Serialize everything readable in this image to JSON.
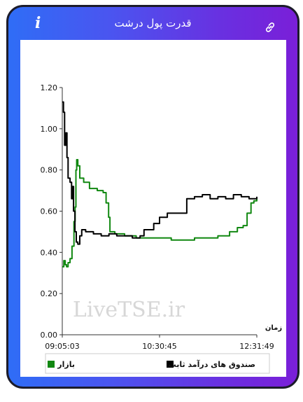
{
  "header": {
    "title": "قدرت پول درشت",
    "info_icon": "info-icon",
    "link_icon": "link-icon"
  },
  "watermark": "LiveTSE.ir",
  "chart_data": {
    "type": "line",
    "xlabel": "زمان",
    "ylabel": "",
    "x_ticks": [
      "09:05:03",
      "10:30:45",
      "12:31:49"
    ],
    "ylim": [
      0,
      1.2
    ],
    "y_ticks": [
      "0.00",
      "0.20",
      "0.40",
      "0.60",
      "0.80",
      "1.00",
      "1.20"
    ],
    "grid": false,
    "legend_position": "bottom",
    "series": [
      {
        "name": "بازار",
        "color": "#118811",
        "points": [
          [
            0.0,
            0.33
          ],
          [
            0.008,
            0.36
          ],
          [
            0.015,
            0.34
          ],
          [
            0.022,
            0.33
          ],
          [
            0.03,
            0.35
          ],
          [
            0.04,
            0.37
          ],
          [
            0.05,
            0.43
          ],
          [
            0.06,
            0.55
          ],
          [
            0.066,
            0.62
          ],
          [
            0.07,
            0.8
          ],
          [
            0.074,
            0.85
          ],
          [
            0.08,
            0.82
          ],
          [
            0.09,
            0.76
          ],
          [
            0.11,
            0.74
          ],
          [
            0.14,
            0.71
          ],
          [
            0.18,
            0.7
          ],
          [
            0.21,
            0.69
          ],
          [
            0.225,
            0.64
          ],
          [
            0.238,
            0.57
          ],
          [
            0.245,
            0.5
          ],
          [
            0.27,
            0.49
          ],
          [
            0.32,
            0.48
          ],
          [
            0.38,
            0.47
          ],
          [
            0.44,
            0.47
          ],
          [
            0.5,
            0.47
          ],
          [
            0.56,
            0.46
          ],
          [
            0.62,
            0.46
          ],
          [
            0.68,
            0.47
          ],
          [
            0.74,
            0.47
          ],
          [
            0.8,
            0.48
          ],
          [
            0.86,
            0.5
          ],
          [
            0.9,
            0.52
          ],
          [
            0.93,
            0.53
          ],
          [
            0.95,
            0.59
          ],
          [
            0.97,
            0.64
          ],
          [
            0.985,
            0.65
          ],
          [
            1.0,
            0.66
          ]
        ]
      },
      {
        "name": "صندوق های درآمد ثابت",
        "color": "#000000",
        "points": [
          [
            0.0,
            1.13
          ],
          [
            0.006,
            1.08
          ],
          [
            0.012,
            0.92
          ],
          [
            0.018,
            0.98
          ],
          [
            0.024,
            0.86
          ],
          [
            0.03,
            0.76
          ],
          [
            0.04,
            0.74
          ],
          [
            0.048,
            0.66
          ],
          [
            0.052,
            0.72
          ],
          [
            0.058,
            0.6
          ],
          [
            0.065,
            0.5
          ],
          [
            0.072,
            0.45
          ],
          [
            0.08,
            0.44
          ],
          [
            0.09,
            0.48
          ],
          [
            0.1,
            0.51
          ],
          [
            0.12,
            0.5
          ],
          [
            0.16,
            0.49
          ],
          [
            0.2,
            0.48
          ],
          [
            0.24,
            0.49
          ],
          [
            0.28,
            0.48
          ],
          [
            0.32,
            0.48
          ],
          [
            0.36,
            0.47
          ],
          [
            0.4,
            0.48
          ],
          [
            0.42,
            0.51
          ],
          [
            0.44,
            0.51
          ],
          [
            0.47,
            0.54
          ],
          [
            0.5,
            0.57
          ],
          [
            0.54,
            0.59
          ],
          [
            0.58,
            0.59
          ],
          [
            0.62,
            0.59
          ],
          [
            0.64,
            0.66
          ],
          [
            0.68,
            0.67
          ],
          [
            0.72,
            0.68
          ],
          [
            0.76,
            0.66
          ],
          [
            0.8,
            0.67
          ],
          [
            0.84,
            0.66
          ],
          [
            0.88,
            0.68
          ],
          [
            0.92,
            0.67
          ],
          [
            0.96,
            0.66
          ],
          [
            1.0,
            0.67
          ]
        ]
      }
    ]
  },
  "legend": {
    "items": [
      "بازار",
      "صندوق های درآمد ثابت"
    ]
  }
}
